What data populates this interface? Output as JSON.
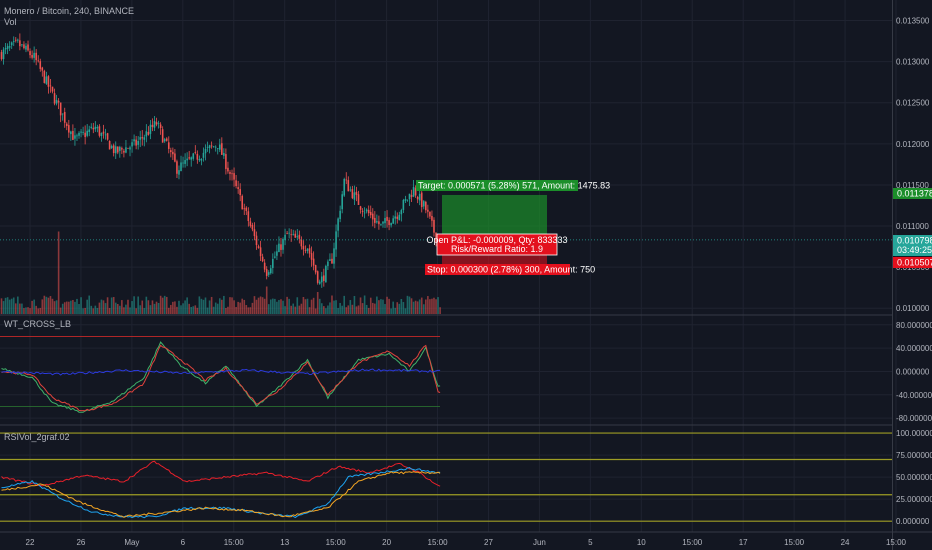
{
  "header": {
    "title": "Monero / Bitcoin, 240, BINANCE",
    "vol_label": "Vol"
  },
  "indicators": {
    "wt_label": "WT_CROSS_LB",
    "rsi_label": "RSIVol_2graf.02"
  },
  "colors": {
    "background": "#131722",
    "up": "#26a69a",
    "down": "#ef5350",
    "target_green": "#1b8e2a",
    "stop_red": "#e3101d",
    "grid": "#1f2330"
  },
  "trade": {
    "target_text": "Target: 0.000571 (5.28%) 571, Amount: 1475.83",
    "open_text": "Open P&L: -0.000009, Qty: 833333",
    "rr_text": "Risk/Reward Ratio: 1.9",
    "stop_text": "Stop: 0.000300 (2.78%) 300, Amount: 750",
    "target_price_tag": "0.011378",
    "current_price_tag": "0.010798",
    "countdown_tag": "03:49:25",
    "stop_price_tag": "0.010507",
    "entry": 0.010807,
    "target": 0.011378,
    "stop": 0.010507
  },
  "chart_data": [
    {
      "type": "candlestick",
      "title": "Monero / Bitcoin, 240, BINANCE",
      "ylim": [
        0.00993,
        0.01375
      ],
      "y_ticks": [
        "0.013500",
        "0.013000",
        "0.012500",
        "0.012000",
        "0.011500",
        "0.011000",
        "0.010500",
        "0.010000"
      ],
      "y_tick_values": [
        0.0135,
        0.013,
        0.0125,
        0.012,
        0.0115,
        0.011,
        0.0105,
        0.01
      ],
      "x_ticks": [
        "22",
        "26",
        "May",
        "6",
        "15:00",
        "13",
        "15:00",
        "20",
        "15:00",
        "27",
        "Jun",
        "5",
        "10",
        "15:00",
        "17",
        "15:00",
        "24",
        "15:00"
      ],
      "price_path": [
        {
          "bar": 0,
          "price": 0.0131
        },
        {
          "bar": 8,
          "price": 0.01322
        },
        {
          "bar": 16,
          "price": 0.01305
        },
        {
          "bar": 26,
          "price": 0.01255
        },
        {
          "bar": 36,
          "price": 0.01205
        },
        {
          "bar": 46,
          "price": 0.0122
        },
        {
          "bar": 56,
          "price": 0.0119
        },
        {
          "bar": 66,
          "price": 0.012
        },
        {
          "bar": 76,
          "price": 0.01225
        },
        {
          "bar": 86,
          "price": 0.0117
        },
        {
          "bar": 96,
          "price": 0.01185
        },
        {
          "bar": 106,
          "price": 0.012
        },
        {
          "bar": 116,
          "price": 0.0114
        },
        {
          "bar": 122,
          "price": 0.011
        },
        {
          "bar": 130,
          "price": 0.01045
        },
        {
          "bar": 140,
          "price": 0.0109
        },
        {
          "bar": 150,
          "price": 0.01075
        },
        {
          "bar": 156,
          "price": 0.0103
        },
        {
          "bar": 162,
          "price": 0.0106
        },
        {
          "bar": 168,
          "price": 0.01155
        },
        {
          "bar": 176,
          "price": 0.01125
        },
        {
          "bar": 186,
          "price": 0.011
        },
        {
          "bar": 194,
          "price": 0.01115
        },
        {
          "bar": 202,
          "price": 0.01145
        },
        {
          "bar": 208,
          "price": 0.0112
        },
        {
          "bar": 214,
          "price": 0.0108
        }
      ],
      "volume_spikes": [
        {
          "bar": 28,
          "volume": 0.75
        },
        {
          "bar": 130,
          "volume": 0.25
        },
        {
          "bar": 155,
          "volume": 0.2
        }
      ]
    },
    {
      "type": "line",
      "title": "WT_CROSS_LB",
      "ylim": [
        -90,
        95
      ],
      "y_ticks": [
        "80.000000",
        "40.000000",
        "0.000000",
        "-40.000000",
        "-80.000000"
      ],
      "y_tick_values": [
        80,
        40,
        0,
        -40,
        -80
      ],
      "series": [
        {
          "name": "wt1",
          "color": "#3fb36a",
          "points": [
            [
              0,
              5
            ],
            [
              15,
              -10
            ],
            [
              25,
              -55
            ],
            [
              40,
              -70
            ],
            [
              55,
              -50
            ],
            [
              70,
              -10
            ],
            [
              78,
              50
            ],
            [
              88,
              10
            ],
            [
              100,
              -20
            ],
            [
              110,
              10
            ],
            [
              125,
              -60
            ],
            [
              135,
              -30
            ],
            [
              150,
              20
            ],
            [
              160,
              -45
            ],
            [
              175,
              20
            ],
            [
              190,
              30
            ],
            [
              200,
              0
            ],
            [
              208,
              40
            ],
            [
              214,
              -25
            ]
          ]
        },
        {
          "name": "wt2",
          "color": "#e0433c",
          "points": [
            [
              0,
              0
            ],
            [
              15,
              -5
            ],
            [
              25,
              -45
            ],
            [
              40,
              -68
            ],
            [
              55,
              -55
            ],
            [
              70,
              -20
            ],
            [
              78,
              45
            ],
            [
              88,
              20
            ],
            [
              100,
              -15
            ],
            [
              110,
              5
            ],
            [
              125,
              -55
            ],
            [
              135,
              -35
            ],
            [
              150,
              15
            ],
            [
              160,
              -40
            ],
            [
              175,
              15
            ],
            [
              190,
              35
            ],
            [
              200,
              10
            ],
            [
              208,
              45
            ],
            [
              214,
              -35
            ]
          ]
        },
        {
          "name": "wt_diff",
          "color": "#2b3adc",
          "points": [
            [
              0,
              0
            ],
            [
              30,
              -5
            ],
            [
              60,
              2
            ],
            [
              90,
              -3
            ],
            [
              120,
              2
            ],
            [
              150,
              -4
            ],
            [
              180,
              3
            ],
            [
              214,
              0
            ]
          ]
        }
      ]
    },
    {
      "type": "line",
      "title": "RSIVol_2graf.02",
      "ylim": [
        -10,
        108
      ],
      "y_ticks": [
        "100.000000",
        "75.000000",
        "50.000000",
        "25.000000",
        "0.000000"
      ],
      "y_tick_values": [
        100,
        75,
        50,
        25,
        0
      ],
      "series": [
        {
          "name": "rsi",
          "color": "#e8202a",
          "points": [
            [
              0,
              50
            ],
            [
              20,
              40
            ],
            [
              40,
              52
            ],
            [
              60,
              45
            ],
            [
              75,
              68
            ],
            [
              90,
              45
            ],
            [
              110,
              50
            ],
            [
              130,
              55
            ],
            [
              150,
              45
            ],
            [
              165,
              62
            ],
            [
              180,
              55
            ],
            [
              195,
              65
            ],
            [
              205,
              55
            ],
            [
              214,
              40
            ]
          ]
        },
        {
          "name": "fast",
          "color": "#1ea3f0",
          "points": [
            [
              0,
              38
            ],
            [
              15,
              45
            ],
            [
              30,
              25
            ],
            [
              45,
              10
            ],
            [
              60,
              5
            ],
            [
              75,
              5
            ],
            [
              90,
              15
            ],
            [
              110,
              15
            ],
            [
              130,
              8
            ],
            [
              145,
              5
            ],
            [
              160,
              20
            ],
            [
              170,
              50
            ],
            [
              185,
              55
            ],
            [
              200,
              60
            ],
            [
              214,
              55
            ]
          ]
        },
        {
          "name": "slow",
          "color": "#f5a623",
          "points": [
            [
              0,
              35
            ],
            [
              20,
              42
            ],
            [
              40,
              20
            ],
            [
              60,
              5
            ],
            [
              80,
              10
            ],
            [
              100,
              15
            ],
            [
              120,
              12
            ],
            [
              140,
              5
            ],
            [
              160,
              15
            ],
            [
              175,
              45
            ],
            [
              190,
              55
            ],
            [
              214,
              55
            ]
          ]
        }
      ]
    }
  ]
}
